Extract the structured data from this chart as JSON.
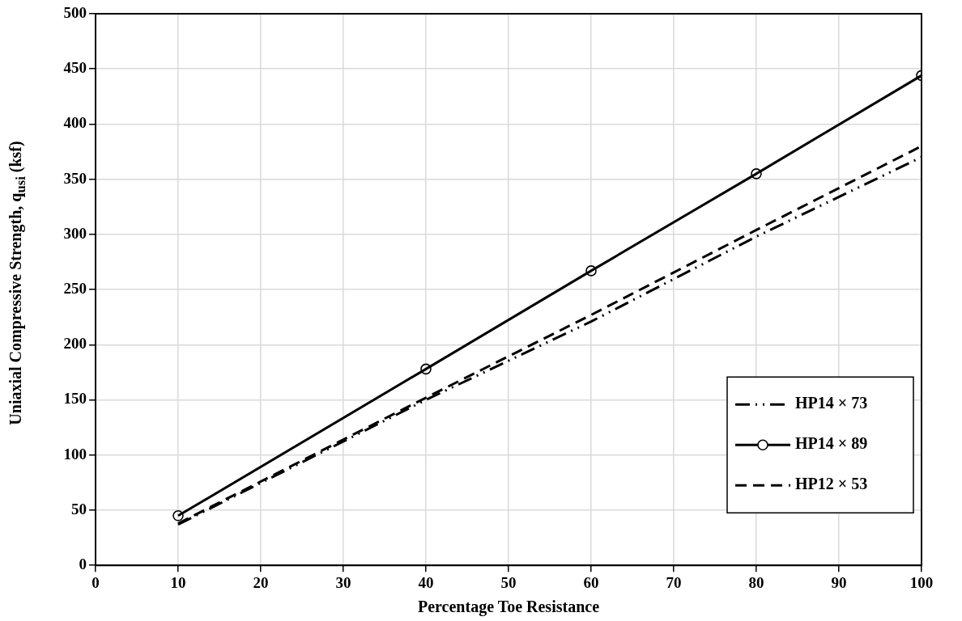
{
  "chart_data": {
    "type": "line",
    "xlabel": "Percentage Toe Resistance",
    "ylabel": "Uniaxial Compressive Strength, q$_{usi}$ (ksf)",
    "x": [
      10,
      40,
      60,
      80,
      100
    ],
    "series": [
      {
        "name": "HP14 × 73",
        "color": "#000000",
        "line_style": "dashdot",
        "marker": "none",
        "values": [
          37,
          150,
          221,
          298,
          370
        ]
      },
      {
        "name": "HP14 × 89",
        "color": "#000000",
        "line_style": "solid",
        "marker": "circle",
        "values": [
          45,
          178,
          267,
          355,
          444
        ]
      },
      {
        "name": "HP12 × 53",
        "color": "#000000",
        "line_style": "dashed",
        "marker": "none",
        "values": [
          38,
          152,
          227,
          304,
          380
        ]
      }
    ],
    "xlim": [
      0,
      100
    ],
    "xticks": [
      0,
      10,
      20,
      30,
      40,
      50,
      60,
      70,
      80,
      90,
      100
    ],
    "ylim": [
      0,
      500
    ],
    "yticks": [
      0,
      50,
      100,
      150,
      200,
      250,
      300,
      350,
      400,
      450,
      500
    ],
    "grid": true,
    "legend": "bottom right"
  }
}
